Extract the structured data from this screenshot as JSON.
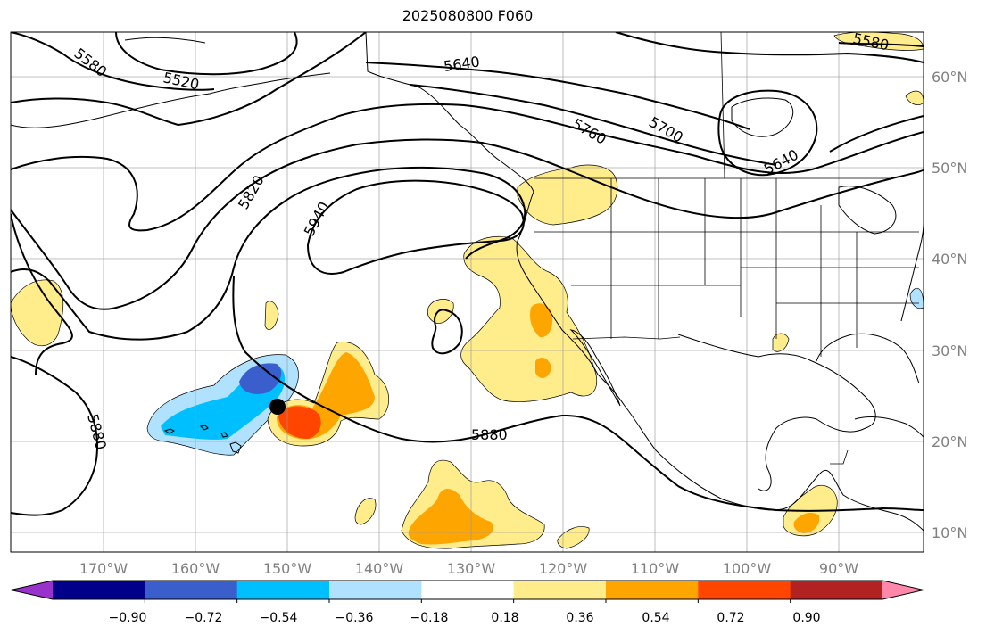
{
  "title": "2025080800 F060",
  "map": {
    "lat_labels": [
      "60°N",
      "50°N",
      "40°N",
      "30°N",
      "20°N",
      "10°N"
    ],
    "lon_labels": [
      "170°W",
      "160°W",
      "150°W",
      "140°W",
      "130°W",
      "120°W",
      "110°W",
      "100°W",
      "90°W"
    ],
    "contour_labels": [
      "5580",
      "5520",
      "5640",
      "5760",
      "5700",
      "5640",
      "5820",
      "5940",
      "5880",
      "5880",
      "5580"
    ],
    "marker": {
      "lon": -150.5,
      "lat": 23.9
    }
  },
  "colorbar": {
    "ticks": [
      "−0.90",
      "−0.72",
      "−0.54",
      "−0.36",
      "−0.18",
      "0.18",
      "0.36",
      "0.54",
      "0.72",
      "0.90"
    ],
    "colors": [
      "#9932cc",
      "#00008b",
      "#3a5fcd",
      "#00bfff",
      "#b0e2ff",
      "#ffffff",
      "#ffec8b",
      "#ffa500",
      "#ff4500",
      "#b22222",
      "#ff88aa"
    ]
  }
}
